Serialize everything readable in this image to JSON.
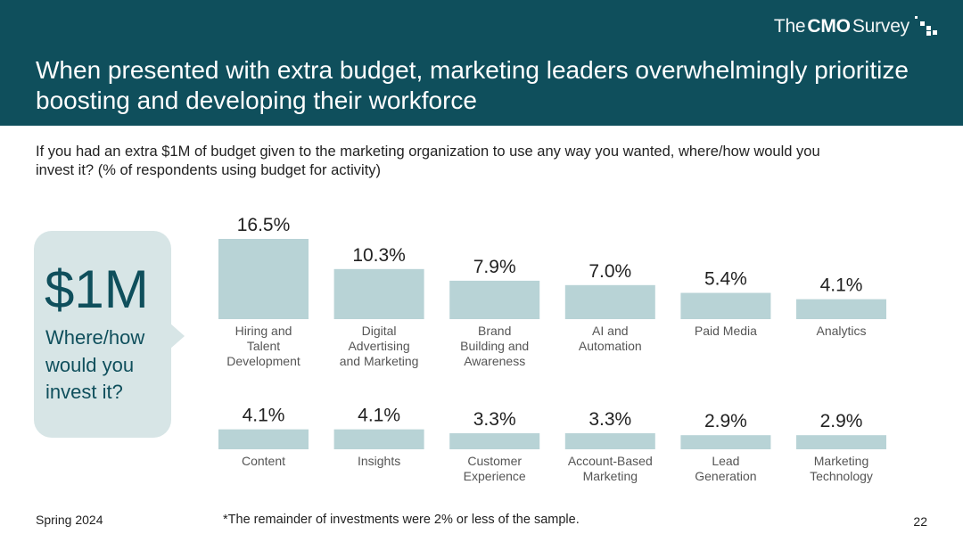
{
  "brand": {
    "pre": "The",
    "bold": "CMO",
    "post": "Survey"
  },
  "headline": "When presented with extra budget, marketing leaders overwhelmingly prioritize boosting and developing their workforce",
  "question": "If you had an extra $1M of budget given to the marketing organization to use any way you wanted, where/how would you invest it? (% of respondents using budget for activity)",
  "callout": {
    "amount": "$1M",
    "text": "Where/how would you invest it?"
  },
  "footer": {
    "left": "Spring 2024",
    "note": "*The remainder of investments were 2% or less of the sample.",
    "page": "22"
  },
  "colors": {
    "header": "#0f4f5c",
    "bar": "#b8d3d6",
    "bubble": "#d7e5e6"
  },
  "chart_data": {
    "type": "bar",
    "unit": "%",
    "ylim": [
      0,
      16.5
    ],
    "grid": false,
    "rows": [
      {
        "categories": [
          [
            "Hiring and",
            "Talent",
            "Development"
          ],
          [
            "Digital",
            "Advertising",
            "and Marketing"
          ],
          [
            "Brand",
            "Building and",
            "Awareness"
          ],
          [
            "AI and",
            "Automation"
          ],
          [
            "Paid Media"
          ],
          [
            "Analytics"
          ]
        ],
        "values": [
          16.5,
          10.3,
          7.9,
          7.0,
          5.4,
          4.1
        ],
        "labels": [
          "16.5%",
          "10.3%",
          "7.9%",
          "7.0%",
          "5.4%",
          "4.1%"
        ]
      },
      {
        "categories": [
          [
            "Content"
          ],
          [
            "Insights"
          ],
          [
            "Customer",
            "Experience"
          ],
          [
            "Account-Based",
            "Marketing"
          ],
          [
            "Lead",
            "Generation"
          ],
          [
            "Marketing",
            "Technology"
          ]
        ],
        "values": [
          4.1,
          4.1,
          3.3,
          3.3,
          2.9,
          2.9
        ],
        "labels": [
          "4.1%",
          "4.1%",
          "3.3%",
          "3.3%",
          "2.9%",
          "2.9%"
        ]
      }
    ]
  }
}
